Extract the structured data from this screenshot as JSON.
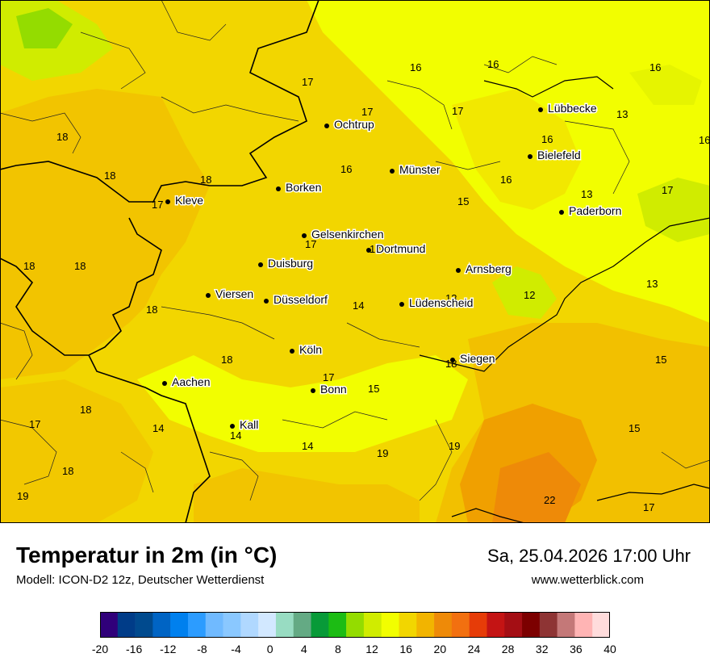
{
  "title": "Temperatur in 2m (in °C)",
  "subtitle": "Modell: ICON-D2 12z, Deutscher Wetterdienst",
  "datetime": "Sa, 25.04.2026 17:00 Uhr",
  "website": "www.wetterblick.com",
  "cities": [
    {
      "name": "Lübbecke"
    },
    {
      "name": "Ochtrup"
    },
    {
      "name": "Bielefeld"
    },
    {
      "name": "Münster"
    },
    {
      "name": "Borken"
    },
    {
      "name": "Kleve"
    },
    {
      "name": "Paderborn"
    },
    {
      "name": "Gelsenkirchen"
    },
    {
      "name": "Dortmund"
    },
    {
      "name": "Duisburg"
    },
    {
      "name": "Arnsberg"
    },
    {
      "name": "Viersen"
    },
    {
      "name": "Düsseldorf"
    },
    {
      "name": "Lüdenscheid"
    },
    {
      "name": "Köln"
    },
    {
      "name": "Siegen"
    },
    {
      "name": "Aachen"
    },
    {
      "name": "Bonn"
    },
    {
      "name": "Kall"
    }
  ],
  "temperatures": [
    "16",
    "16",
    "16",
    "17",
    "17",
    "17",
    "13",
    "18",
    "16",
    "16",
    "18",
    "18",
    "16",
    "17",
    "15",
    "13",
    "16",
    "17",
    "18",
    "18",
    "17",
    "12",
    "13",
    "18",
    "14",
    "13",
    "18",
    "18",
    "15",
    "17",
    "15",
    "17",
    "18",
    "14",
    "14",
    "14",
    "15",
    "19",
    "19",
    "17",
    "18",
    "19",
    "22",
    "17"
  ],
  "legend": {
    "colors": [
      "#30007a",
      "#003c88",
      "#004a8e",
      "#0064c4",
      "#0080ee",
      "#2c9cff",
      "#70baff",
      "#8ac8ff",
      "#b0d8ff",
      "#d2e8ff",
      "#98dcc2",
      "#64aa84",
      "#089a38",
      "#1cbc14",
      "#94dc00",
      "#d0ec00",
      "#f2fe00",
      "#f2d600",
      "#f2b400",
      "#ee8a08",
      "#f27010",
      "#e63c08",
      "#c41414",
      "#a40e14",
      "#7c0000",
      "#8e3434",
      "#c47878",
      "#ffb4b4",
      "#ffdcdc"
    ],
    "labels": [
      "-20",
      "-16",
      "-12",
      "-8",
      "-4",
      "0",
      "4",
      "8",
      "12",
      "16",
      "20",
      "24",
      "28",
      "32",
      "36",
      "40"
    ]
  }
}
